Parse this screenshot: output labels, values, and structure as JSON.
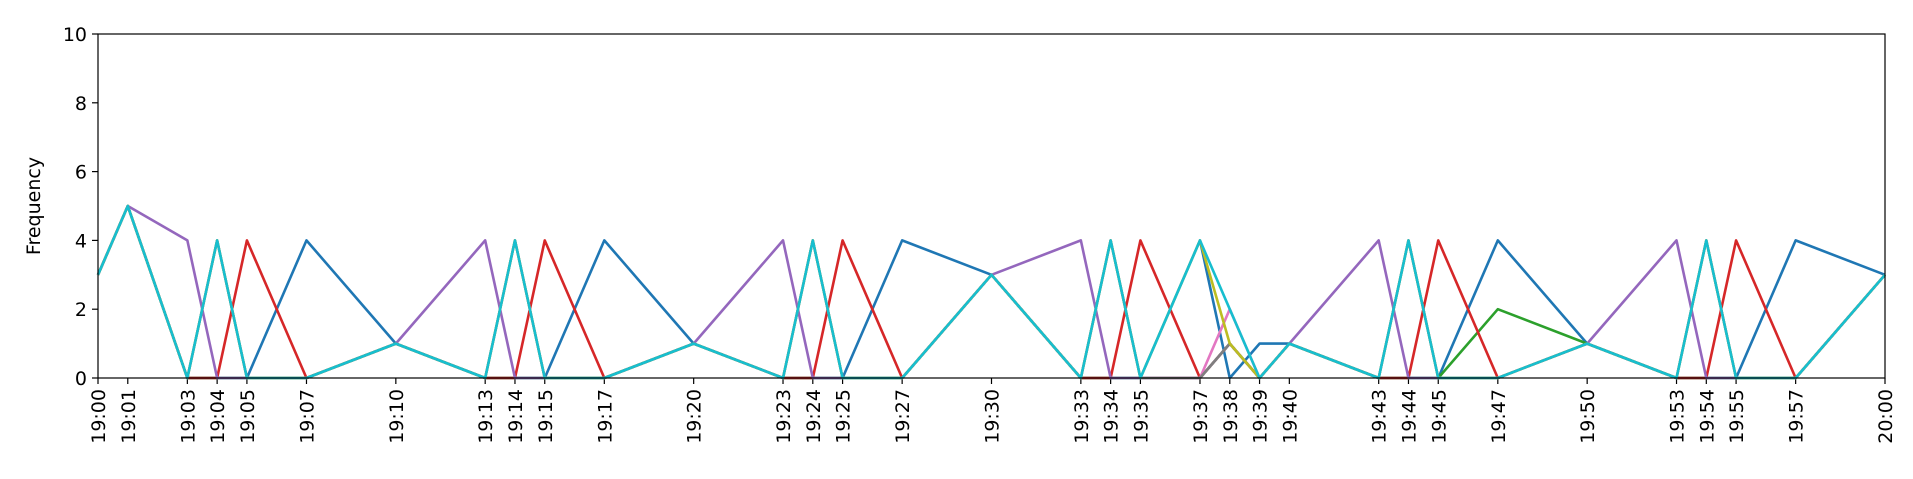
{
  "chart_data": {
    "type": "line",
    "y_label": "Frequency",
    "x": [
      "19:00",
      "19:01",
      "19:03",
      "19:04",
      "19:05",
      "19:07",
      "19:10",
      "19:13",
      "19:14",
      "19:15",
      "19:17",
      "19:20",
      "19:23",
      "19:24",
      "19:25",
      "19:27",
      "19:30",
      "19:33",
      "19:34",
      "19:35",
      "19:37",
      "19:38",
      "19:39",
      "19:40",
      "19:43",
      "19:44",
      "19:45",
      "19:47",
      "19:50",
      "19:53",
      "19:54",
      "19:55",
      "19:57",
      "20:00"
    ],
    "xlim": [
      "19:00",
      "20:00"
    ],
    "xticks": [
      "19:00",
      "19:01",
      "19:03",
      "19:04",
      "19:05",
      "19:07",
      "19:10",
      "19:13",
      "19:14",
      "19:15",
      "19:17",
      "19:20",
      "19:23",
      "19:24",
      "19:25",
      "19:27",
      "19:30",
      "19:33",
      "19:34",
      "19:35",
      "19:37",
      "19:38",
      "19:39",
      "19:40",
      "19:43",
      "19:44",
      "19:45",
      "19:47",
      "19:50",
      "19:53",
      "19:54",
      "19:55",
      "19:57",
      "20:00"
    ],
    "ylim": [
      0,
      10
    ],
    "yticks": [
      0,
      2,
      4,
      6,
      8,
      10
    ],
    "series": [
      {
        "color": "#1f77b4",
        "values": [
          3,
          5,
          0,
          0,
          0,
          4,
          1,
          0,
          0,
          0,
          4,
          1,
          0,
          0,
          0,
          4,
          3,
          0,
          0,
          0,
          4,
          0,
          1,
          1,
          0,
          0,
          0,
          4,
          1,
          0,
          0,
          0,
          4,
          3
        ]
      },
      {
        "color": "#2ca02c",
        "values": [
          3,
          5,
          0,
          0,
          0,
          0,
          1,
          0,
          0,
          0,
          0,
          1,
          0,
          0,
          0,
          0,
          3,
          0,
          0,
          0,
          0,
          1,
          0,
          1,
          0,
          0,
          0,
          2,
          1,
          0,
          0,
          0,
          0,
          3
        ]
      },
      {
        "color": "#d62728",
        "values": [
          3,
          5,
          0,
          0,
          4,
          0,
          1,
          0,
          0,
          4,
          0,
          1,
          0,
          0,
          4,
          0,
          3,
          0,
          0,
          4,
          0,
          1,
          0,
          1,
          0,
          0,
          4,
          0,
          1,
          0,
          0,
          4,
          0,
          3
        ]
      },
      {
        "color": "#9467bd",
        "values": [
          3,
          5,
          4,
          0,
          0,
          0,
          1,
          4,
          0,
          0,
          0,
          1,
          4,
          0,
          0,
          0,
          3,
          4,
          0,
          0,
          0,
          1,
          0,
          1,
          4,
          0,
          0,
          0,
          1,
          4,
          0,
          0,
          0,
          3
        ]
      },
      {
        "color": "#e377c2",
        "values": [
          3,
          5,
          0,
          4,
          0,
          0,
          1,
          0,
          4,
          0,
          0,
          1,
          0,
          4,
          0,
          0,
          3,
          0,
          4,
          0,
          0,
          2,
          0,
          1,
          0,
          4,
          0,
          0,
          1,
          0,
          4,
          0,
          0,
          3
        ]
      },
      {
        "color": "#7f7f7f",
        "values": [
          3,
          5,
          0,
          4,
          0,
          0,
          1,
          0,
          4,
          0,
          0,
          1,
          0,
          4,
          0,
          0,
          3,
          0,
          4,
          0,
          0,
          1,
          0,
          1,
          0,
          4,
          0,
          0,
          1,
          0,
          4,
          0,
          0,
          3
        ]
      },
      {
        "color": "#bcbd22",
        "values": [
          3,
          5,
          0,
          4,
          0,
          0,
          1,
          0,
          4,
          0,
          0,
          1,
          0,
          4,
          0,
          0,
          3,
          0,
          4,
          0,
          4,
          1,
          0,
          1,
          0,
          4,
          0,
          0,
          1,
          0,
          4,
          0,
          0,
          3
        ]
      },
      {
        "color": "#17becf",
        "values": [
          3,
          5,
          0,
          4,
          0,
          0,
          1,
          0,
          4,
          0,
          0,
          1,
          0,
          4,
          0,
          0,
          3,
          0,
          4,
          0,
          4,
          2,
          0,
          1,
          0,
          4,
          0,
          0,
          1,
          0,
          4,
          0,
          0,
          3
        ]
      }
    ]
  }
}
